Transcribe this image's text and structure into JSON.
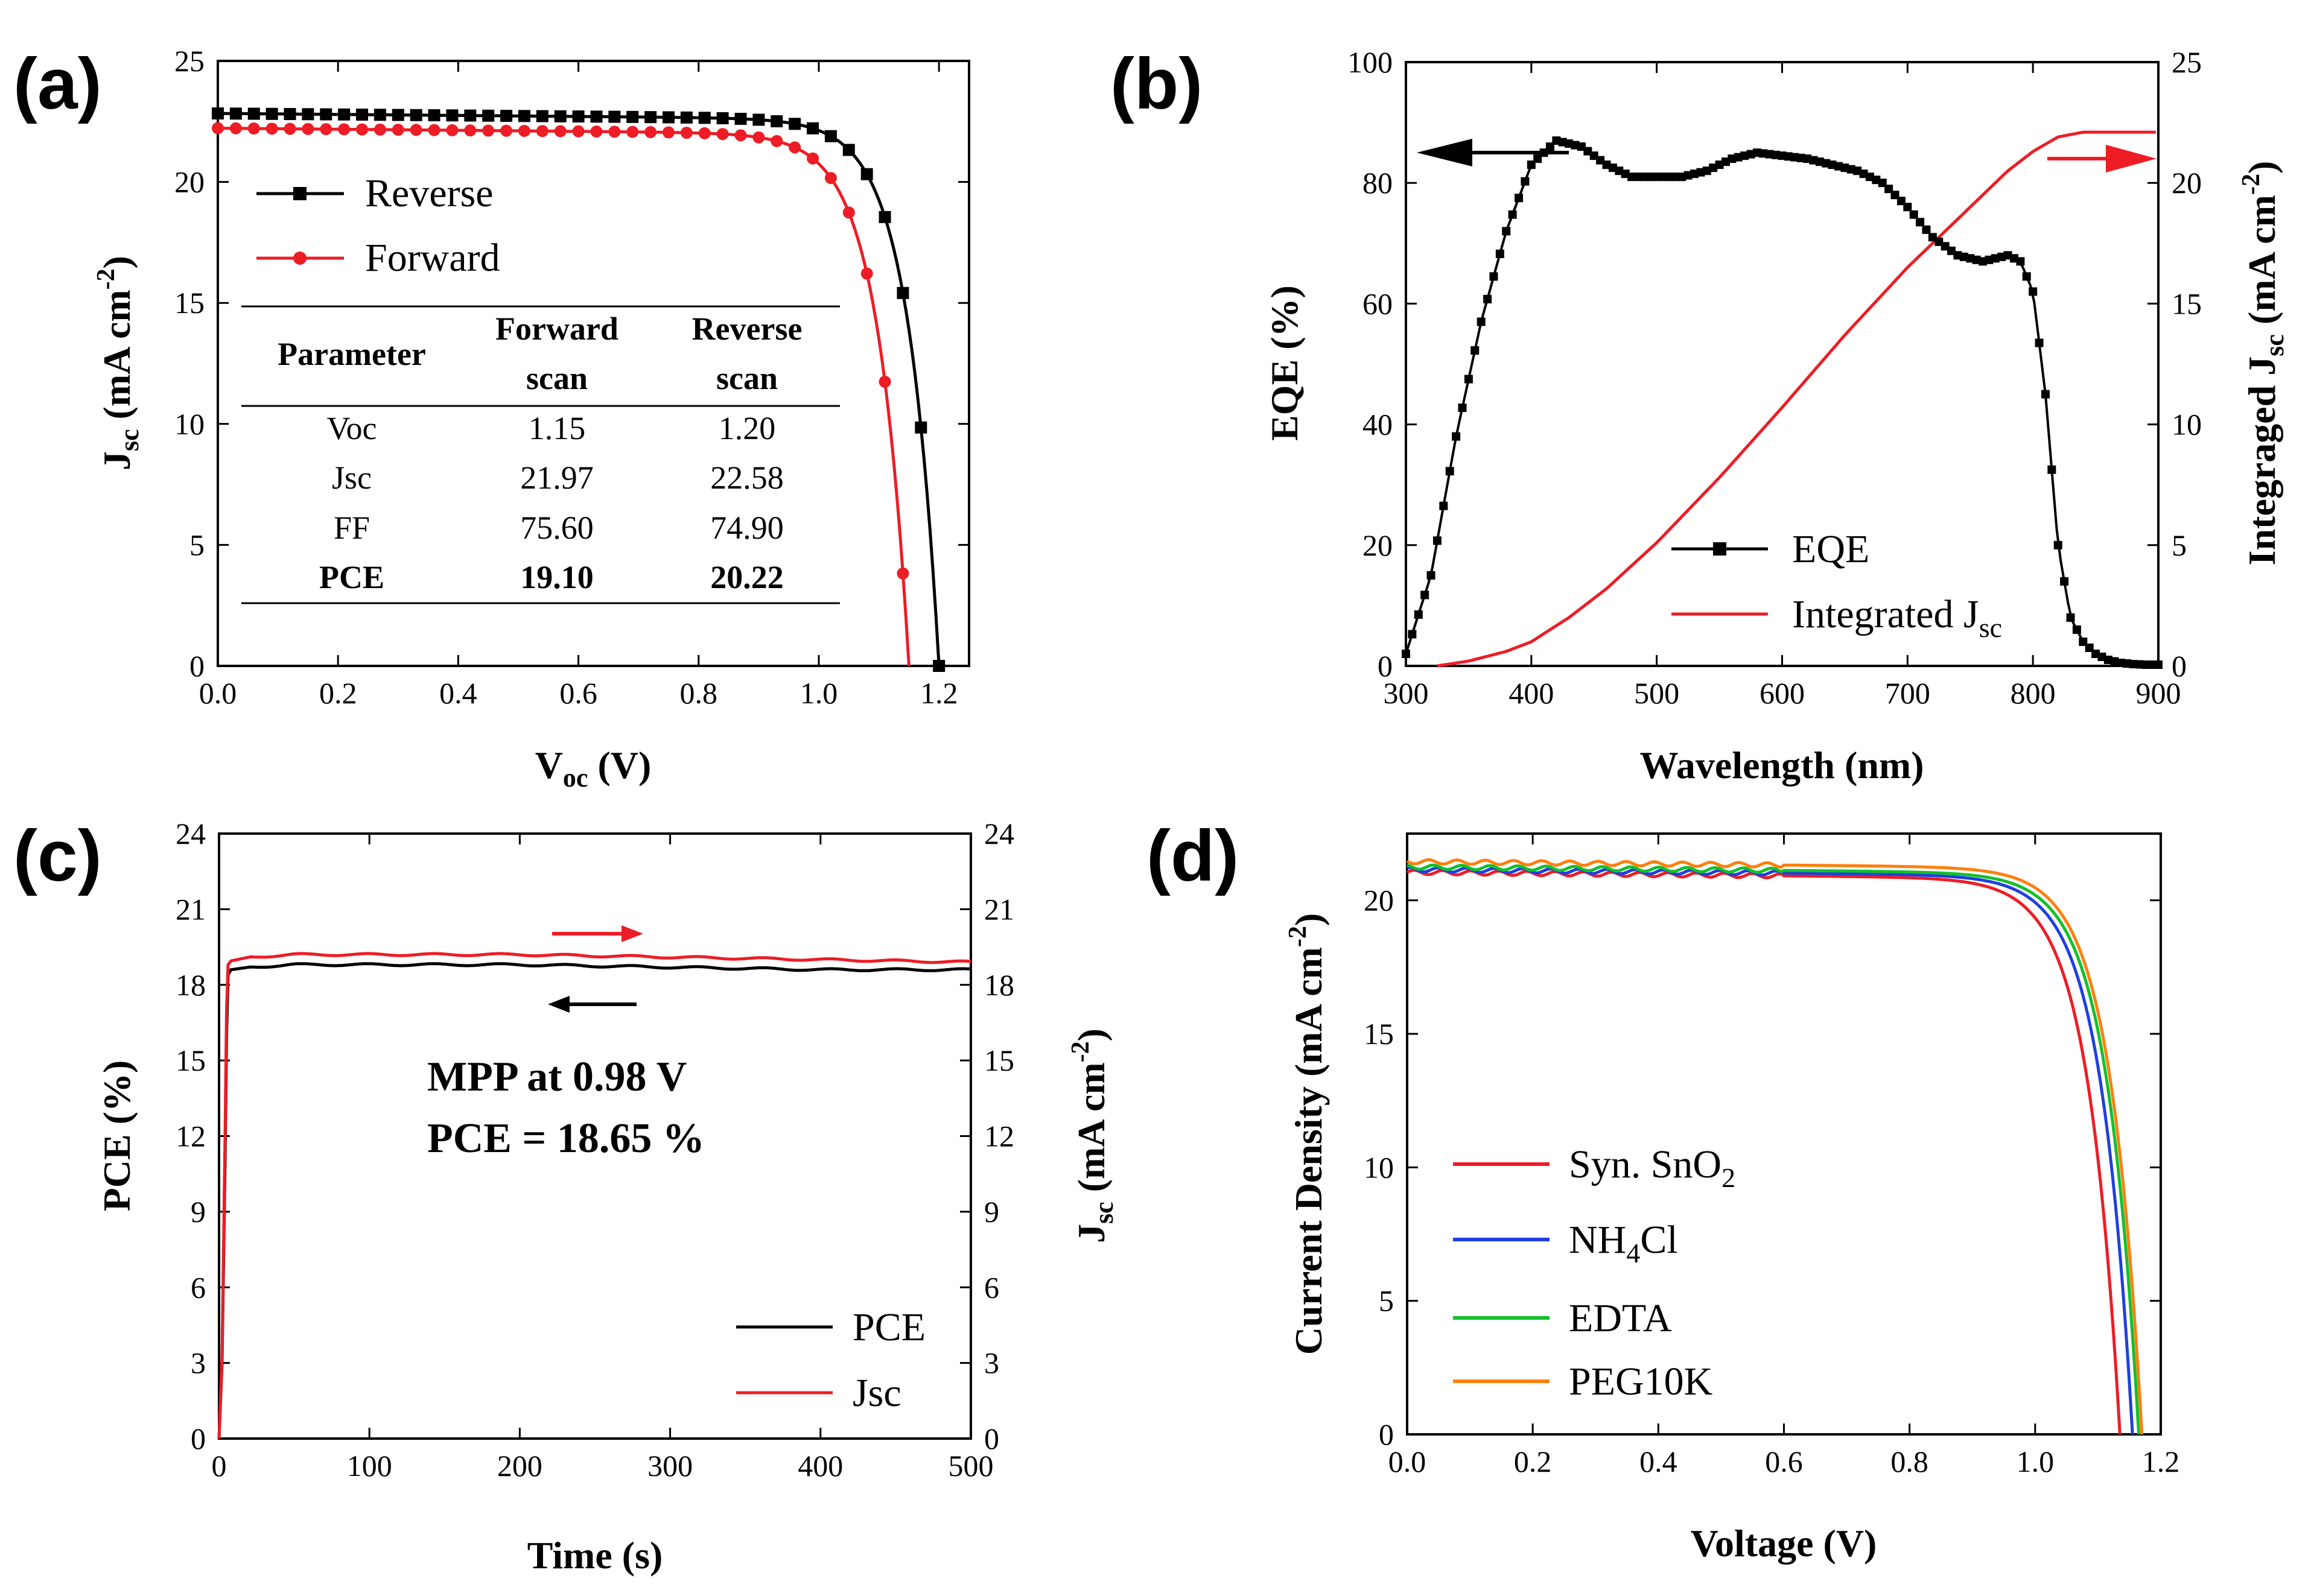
{
  "chart_data": [
    {
      "type": "line",
      "panel_label": "(a)",
      "xlabel": "V",
      "xlabel_sub": "oc",
      "xlabel_tail": " (V)",
      "ylabel": "J",
      "ylabel_sub": "sc",
      "ylabel_tail": " (mA cm",
      "ylabel_sup": "-2",
      "ylabel_close": ")",
      "xlim": [
        0,
        1.25
      ],
      "ylim": [
        0,
        25
      ],
      "x_ticks": [
        "0.0",
        "0.2",
        "0.4",
        "0.6",
        "0.8",
        "1.0",
        "1.2"
      ],
      "y_ticks": [
        "0",
        "5",
        "10",
        "15",
        "20",
        "25"
      ],
      "series": [
        {
          "name": "Reverse",
          "color": "#000000",
          "marker": "square",
          "jsc": 22.58,
          "voc": 1.2,
          "vm": 0.98
        },
        {
          "name": "Forward",
          "color": "#ee1c25",
          "marker": "circle",
          "jsc": 21.97,
          "voc": 1.15,
          "vm": 0.93
        }
      ],
      "legend": [
        "Reverse",
        "Forward"
      ],
      "table": {
        "headers": [
          "Parameter",
          "Forward",
          "scan",
          "Reverse",
          "scan"
        ],
        "rows": [
          [
            "Voc",
            "1.15",
            "1.20"
          ],
          [
            "Jsc",
            "21.97",
            "22.58"
          ],
          [
            "FF",
            "75.60",
            "74.90"
          ],
          [
            "PCE",
            "19.10",
            "20.22"
          ]
        ]
      }
    },
    {
      "type": "line",
      "panel_label": "(b)",
      "xlabel": "Wavelength (nm)",
      "ylabel": "EQE (%)",
      "y2label": "Integraged J",
      "y2label_sub": "sc",
      "y2label_tail": " (mA cm",
      "y2label_sup": "-2",
      "y2label_close": ")",
      "xlim": [
        300,
        900
      ],
      "ylim": [
        0,
        100
      ],
      "y2lim": [
        0,
        25
      ],
      "x_ticks": [
        "300",
        "400",
        "500",
        "600",
        "700",
        "800",
        "900"
      ],
      "y_ticks": [
        "0",
        "20",
        "40",
        "60",
        "80",
        "100"
      ],
      "y2_ticks": [
        "0",
        "5",
        "10",
        "15",
        "20",
        "25"
      ],
      "series": [
        {
          "name": "EQE",
          "color": "#000000",
          "axis": "left",
          "marker": "square",
          "x": [
            300,
            320,
            340,
            360,
            380,
            400,
            420,
            440,
            460,
            480,
            500,
            520,
            540,
            560,
            580,
            600,
            620,
            640,
            660,
            680,
            700,
            720,
            740,
            760,
            780,
            790,
            800,
            810,
            820,
            830,
            840,
            850,
            860,
            870,
            880,
            890,
            900
          ],
          "y": [
            2,
            15,
            38,
            57,
            72,
            83,
            87,
            86,
            83,
            81,
            81,
            81,
            82,
            84,
            85,
            84.5,
            84,
            83,
            82,
            80,
            76,
            71,
            68,
            67,
            68,
            67,
            62,
            45,
            20,
            8,
            4,
            2,
            1,
            0.5,
            0.3,
            0.2,
            0.2
          ]
        },
        {
          "name": "Integrated J",
          "name_sub": "sc",
          "color": "#ee1c25",
          "axis": "right",
          "x": [
            325,
            350,
            380,
            400,
            430,
            460,
            500,
            550,
            600,
            650,
            700,
            750,
            780,
            800,
            820,
            840,
            860,
            880,
            900
          ],
          "y": [
            0,
            0.2,
            0.6,
            1.0,
            2.0,
            3.2,
            5.1,
            7.8,
            10.7,
            13.7,
            16.5,
            19.0,
            20.5,
            21.3,
            21.9,
            22.1,
            22.1,
            22.1,
            22.1
          ]
        }
      ],
      "legend": [
        "EQE",
        "Integrated J"
      ],
      "legend_sub": "sc"
    },
    {
      "type": "line",
      "panel_label": "(c)",
      "xlabel": "Time (s)",
      "ylabel": "PCE (%)",
      "y2label": "J",
      "y2label_sub": "sc",
      "y2label_tail": " (mA cm",
      "y2label_sup": "-2",
      "y2label_close": ")",
      "xlim": [
        0,
        500
      ],
      "ylim": [
        0,
        24
      ],
      "y2lim": [
        0,
        24
      ],
      "x_ticks": [
        "0",
        "100",
        "200",
        "300",
        "400",
        "500"
      ],
      "y_ticks": [
        "0",
        "3",
        "6",
        "9",
        "12",
        "15",
        "18",
        "21",
        "24"
      ],
      "series": [
        {
          "name": "PCE",
          "color": "#000000",
          "axis": "left",
          "x": [
            0,
            2,
            4,
            5,
            6,
            8,
            20,
            50,
            100,
            200,
            300,
            400,
            500
          ],
          "y": [
            0,
            3,
            11,
            16,
            18.4,
            18.6,
            18.7,
            18.8,
            18.8,
            18.8,
            18.7,
            18.6,
            18.6
          ]
        },
        {
          "name": "Jsc",
          "color": "#ee1c25",
          "axis": "right",
          "x": [
            0,
            2,
            4,
            5,
            6,
            8,
            20,
            50,
            100,
            200,
            300,
            400,
            500
          ],
          "y": [
            0,
            3.2,
            12,
            17,
            18.8,
            18.95,
            19.1,
            19.2,
            19.2,
            19.2,
            19.1,
            19.0,
            18.9
          ]
        }
      ],
      "legend": [
        "PCE",
        "Jsc"
      ],
      "annotation_line1": "MPP at  0.98 V",
      "annotation_line2": "PCE = 18.65 %"
    },
    {
      "type": "line",
      "panel_label": "(d)",
      "xlabel": "Voltage (V)",
      "ylabel": "Current Density (mA cm",
      "ylabel_sup": "-2",
      "ylabel_close": ")",
      "xlim": [
        0,
        1.2
      ],
      "ylim": [
        0,
        22.5
      ],
      "x_ticks": [
        "0.0",
        "0.2",
        "0.4",
        "0.6",
        "0.8",
        "1.0",
        "1.2"
      ],
      "y_ticks": [
        "0",
        "5",
        "10",
        "15",
        "20"
      ],
      "series": [
        {
          "name": "Syn. SnO",
          "name_sub": "2",
          "color": "#ee1c25",
          "jsc": 20.8,
          "voc": 1.135,
          "vm": 0.92
        },
        {
          "name": "NH",
          "name_sub": "4",
          "name_tail": "Cl",
          "color": "#1f3fe0",
          "jsc": 20.9,
          "voc": 1.155,
          "vm": 0.94
        },
        {
          "name": "EDTA",
          "color": "#12c02a",
          "jsc": 21.0,
          "voc": 1.165,
          "vm": 0.95
        },
        {
          "name": "PEG10K",
          "color": "#ff7f0e",
          "jsc": 21.2,
          "voc": 1.17,
          "vm": 0.955
        }
      ]
    }
  ]
}
